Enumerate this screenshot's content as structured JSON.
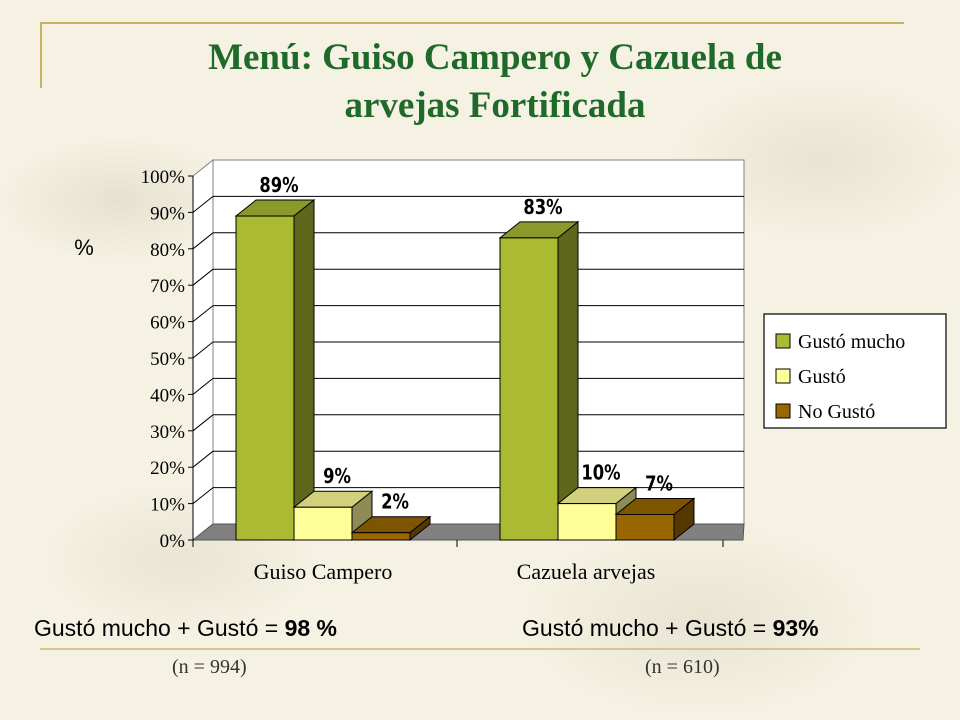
{
  "slide": {
    "title_line1": "Menú: Guiso Campero y Cazuela de",
    "title_line2": "arvejas Fortificada"
  },
  "chart_data": {
    "type": "bar",
    "ylabel": "%",
    "ylim": [
      0,
      100
    ],
    "yticks": [
      "0%",
      "10%",
      "20%",
      "30%",
      "40%",
      "50%",
      "60%",
      "70%",
      "80%",
      "90%",
      "100%"
    ],
    "grid": true,
    "legend_position": "right",
    "categories": [
      "Guiso Campero",
      "Cazuela arvejas"
    ],
    "series": [
      {
        "name": "Gustó mucho",
        "values": [
          89,
          83
        ],
        "labels": [
          "89%",
          "83%"
        ],
        "color": "#aabb33"
      },
      {
        "name": "Gustó",
        "values": [
          9,
          10
        ],
        "labels": [
          "9%",
          "10%"
        ],
        "color": "#ffff99"
      },
      {
        "name": "No Gustó",
        "values": [
          2,
          7
        ],
        "labels": [
          "2%",
          "7%"
        ],
        "color": "#996600"
      }
    ]
  },
  "summaries": [
    {
      "prefix": "Gustó mucho + Gustó = ",
      "value": "98 %",
      "n": "(n = 994)"
    },
    {
      "prefix": "Gustó mucho + Gustó = ",
      "value": "93%",
      "n": "(n = 610)"
    }
  ]
}
